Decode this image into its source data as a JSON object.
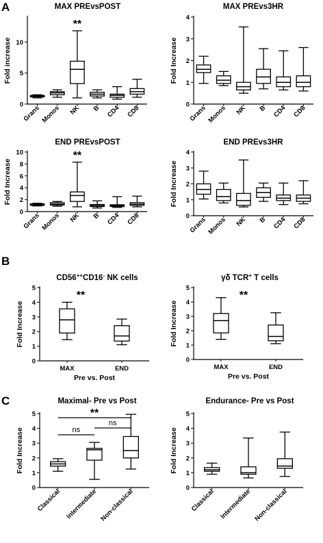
{
  "panel_letters": [
    "A",
    "B",
    "C"
  ],
  "chart_data": [
    {
      "type": "box",
      "title": "MAX PREvsPOST",
      "ylabel": "Fold increase",
      "xlabel": "",
      "ylim": [
        0,
        14
      ],
      "yticks": [
        0,
        5,
        10
      ],
      "categories": [
        "Grans",
        "Monos",
        "NK",
        "B",
        "CD4",
        "CD8"
      ],
      "boxes": [
        {
          "min": 1.0,
          "q1": 1.15,
          "median": 1.25,
          "q3": 1.4,
          "max": 1.5
        },
        {
          "min": 1.1,
          "q1": 1.5,
          "median": 1.8,
          "q3": 2.0,
          "max": 2.3
        },
        {
          "min": 1.0,
          "q1": 3.3,
          "median": 5.6,
          "q3": 6.9,
          "max": 11.8
        },
        {
          "min": 1.0,
          "q1": 1.3,
          "median": 1.6,
          "q3": 1.9,
          "max": 2.3
        },
        {
          "min": 0.8,
          "q1": 1.1,
          "median": 1.4,
          "q3": 1.6,
          "max": 2.8
        },
        {
          "min": 1.1,
          "q1": 1.6,
          "median": 2.0,
          "q3": 2.5,
          "max": 4.0
        }
      ],
      "annotations": [
        {
          "category": "NK",
          "text": "**"
        }
      ]
    },
    {
      "type": "box",
      "title": "MAX PREvs3HR",
      "ylabel": "Fold Increase",
      "xlabel": "",
      "ylim": [
        0,
        4
      ],
      "yticks": [
        0,
        1,
        2,
        3,
        4
      ],
      "categories": [
        "Grans",
        "Monos",
        "NK",
        "B",
        "CD4",
        "CD8"
      ],
      "boxes": [
        {
          "min": 0.95,
          "q1": 1.45,
          "median": 1.6,
          "q3": 1.8,
          "max": 2.2
        },
        {
          "min": 0.85,
          "q1": 0.95,
          "median": 1.1,
          "q3": 1.3,
          "max": 1.5
        },
        {
          "min": 0.5,
          "q1": 0.65,
          "median": 0.8,
          "q3": 1.0,
          "max": 3.55
        },
        {
          "min": 0.7,
          "q1": 0.95,
          "median": 1.25,
          "q3": 1.6,
          "max": 2.55
        },
        {
          "min": 0.65,
          "q1": 0.8,
          "median": 1.0,
          "q3": 1.25,
          "max": 2.45
        },
        {
          "min": 0.6,
          "q1": 0.8,
          "median": 1.0,
          "q3": 1.3,
          "max": 2.6
        }
      ],
      "annotations": []
    },
    {
      "type": "box",
      "title": "END PREvsPOST",
      "ylabel": "Fold Increase",
      "xlabel": "",
      "ylim": [
        0,
        10
      ],
      "yticks": [
        0,
        2,
        4,
        6,
        8,
        10
      ],
      "categories": [
        "Grans",
        "Monos",
        "NK",
        "B",
        "CD4",
        "CD8"
      ],
      "boxes": [
        {
          "min": 0.95,
          "q1": 1.05,
          "median": 1.15,
          "q3": 1.3,
          "max": 1.4
        },
        {
          "min": 0.9,
          "q1": 1.1,
          "median": 1.25,
          "q3": 1.5,
          "max": 1.7
        },
        {
          "min": 0.8,
          "q1": 1.7,
          "median": 2.7,
          "q3": 3.3,
          "max": 8.3
        },
        {
          "min": 0.6,
          "q1": 0.85,
          "median": 1.0,
          "q3": 1.2,
          "max": 1.8
        },
        {
          "min": 0.7,
          "q1": 0.85,
          "median": 1.0,
          "q3": 1.15,
          "max": 2.5
        },
        {
          "min": 0.8,
          "q1": 1.05,
          "median": 1.25,
          "q3": 1.5,
          "max": 2.6
        }
      ],
      "annotations": [
        {
          "category": "NK",
          "text": "**"
        }
      ]
    },
    {
      "type": "box",
      "title": "END PREvs3HR",
      "ylabel": "Fold Increase",
      "xlabel": "",
      "ylim": [
        0,
        4
      ],
      "yticks": [
        0,
        1,
        2,
        3,
        4
      ],
      "categories": [
        "Grans",
        "Monos",
        "NK",
        "B",
        "CD4",
        "CD8"
      ],
      "boxes": [
        {
          "min": 1.05,
          "q1": 1.35,
          "median": 1.65,
          "q3": 2.0,
          "max": 2.8
        },
        {
          "min": 0.8,
          "q1": 0.95,
          "median": 1.2,
          "q3": 1.65,
          "max": 2.05
        },
        {
          "min": 0.55,
          "q1": 0.65,
          "median": 0.95,
          "q3": 1.4,
          "max": 3.5
        },
        {
          "min": 0.9,
          "q1": 1.15,
          "median": 1.45,
          "q3": 1.75,
          "max": 2.05
        },
        {
          "min": 0.7,
          "q1": 0.95,
          "median": 1.1,
          "q3": 1.3,
          "max": 2.05
        },
        {
          "min": 0.75,
          "q1": 0.9,
          "median": 1.1,
          "q3": 1.3,
          "max": 2.2
        }
      ],
      "annotations": []
    },
    {
      "type": "box",
      "title": "CD56++CD16- NK cells",
      "title_parts": {
        "base": "CD56",
        "sup1": "++",
        "mid": "CD16",
        "sup2": "-",
        "tail": " NK cells"
      },
      "ylabel": "Fold Increase",
      "xlabel": "Pre vs. Post",
      "ylim": [
        0,
        5
      ],
      "yticks": [
        0,
        1,
        2,
        3,
        4,
        5
      ],
      "categories": [
        "MAX",
        "END"
      ],
      "boxes": [
        {
          "min": 1.45,
          "q1": 1.9,
          "median": 2.8,
          "q3": 3.55,
          "max": 4.0
        },
        {
          "min": 1.1,
          "q1": 1.35,
          "median": 1.7,
          "q3": 2.4,
          "max": 2.85
        }
      ],
      "annotations": [
        {
          "text": "**"
        }
      ]
    },
    {
      "type": "box",
      "title": "γδ TCR+ T cells",
      "title_parts": {
        "base": "γδ TCR",
        "sup1": "+",
        "tail": " T cells"
      },
      "ylabel": "Fold Increase",
      "xlabel": "Pre vs. Post",
      "ylim": [
        0,
        5
      ],
      "yticks": [
        0,
        1,
        2,
        3,
        4,
        5
      ],
      "categories": [
        "MAX",
        "END"
      ],
      "boxes": [
        {
          "min": 1.4,
          "q1": 1.85,
          "median": 2.7,
          "q3": 3.2,
          "max": 4.3
        },
        {
          "min": 1.1,
          "q1": 1.3,
          "median": 1.6,
          "q3": 2.4,
          "max": 3.25
        }
      ],
      "annotations": [
        {
          "text": "**"
        }
      ]
    },
    {
      "type": "box",
      "title": "Maximal- Pre vs Post",
      "ylabel": "Fold Increase",
      "xlabel": "",
      "ylim": [
        0,
        5
      ],
      "yticks": [
        0,
        1,
        2,
        3,
        4,
        5
      ],
      "categories": [
        "Classical",
        "Intermediate",
        "Non-classical"
      ],
      "boxes": [
        {
          "min": 1.1,
          "q1": 1.45,
          "median": 1.6,
          "q3": 1.75,
          "max": 1.95
        },
        {
          "min": 0.55,
          "q1": 1.85,
          "median": 2.55,
          "q3": 2.65,
          "max": 3.05
        },
        {
          "min": 1.25,
          "q1": 2.0,
          "median": 2.5,
          "q3": 3.45,
          "max": 4.95
        }
      ],
      "significance": [
        {
          "from": 0,
          "to": 2,
          "text": "**"
        },
        {
          "from": 0,
          "to": 1,
          "text": "ns"
        },
        {
          "from": 1,
          "to": 2,
          "text": "ns"
        }
      ]
    },
    {
      "type": "box",
      "title": "Endurance- Pre vs Post",
      "ylabel": "Fold Increase",
      "xlabel": "",
      "ylim": [
        0,
        5
      ],
      "yticks": [
        0,
        1,
        2,
        3,
        4,
        5
      ],
      "categories": [
        "Classical",
        "Intermediate",
        "Non-classical"
      ],
      "boxes": [
        {
          "min": 0.9,
          "q1": 1.1,
          "median": 1.2,
          "q3": 1.35,
          "max": 1.65
        },
        {
          "min": 0.65,
          "q1": 0.9,
          "median": 1.0,
          "q3": 1.4,
          "max": 3.35
        },
        {
          "min": 0.75,
          "q1": 1.3,
          "median": 1.45,
          "q3": 1.95,
          "max": 3.75
        }
      ],
      "significance": []
    }
  ]
}
